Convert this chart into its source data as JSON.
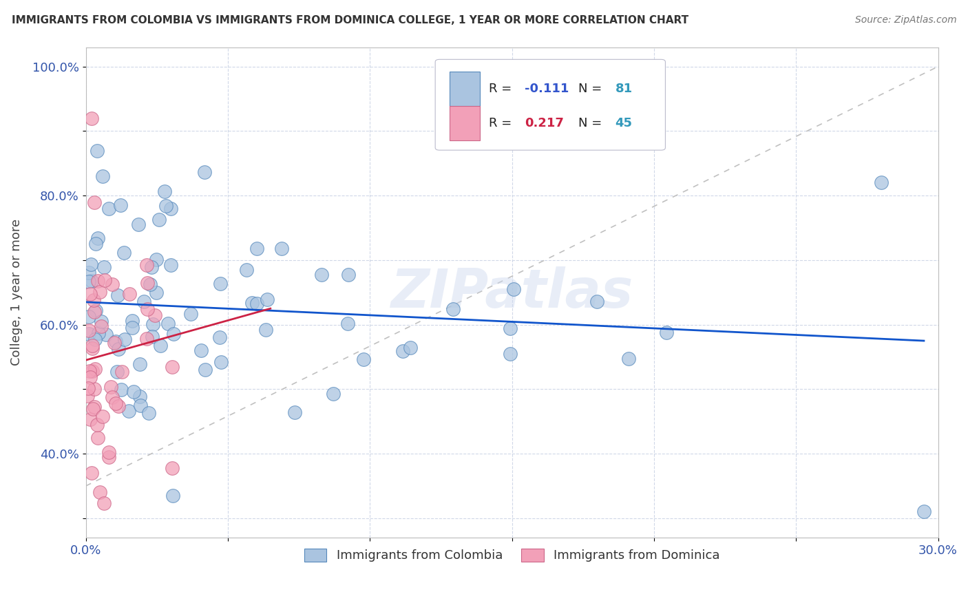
{
  "title": "IMMIGRANTS FROM COLOMBIA VS IMMIGRANTS FROM DOMINICA COLLEGE, 1 YEAR OR MORE CORRELATION CHART",
  "source": "Source: ZipAtlas.com",
  "ylabel": "College, 1 year or more",
  "xlim": [
    0.0,
    0.3
  ],
  "ylim": [
    0.27,
    1.03
  ],
  "xtick_positions": [
    0.0,
    0.05,
    0.1,
    0.15,
    0.2,
    0.25,
    0.3
  ],
  "xtick_labels": [
    "0.0%",
    "",
    "",
    "",
    "",
    "",
    "30.0%"
  ],
  "ytick_positions": [
    0.3,
    0.4,
    0.5,
    0.6,
    0.7,
    0.8,
    0.9,
    1.0
  ],
  "ytick_labels": [
    "",
    "40.0%",
    "",
    "60.0%",
    "",
    "80.0%",
    "",
    "100.0%"
  ],
  "colombia_color": "#aac4e0",
  "dominica_color": "#f2a0b8",
  "colombia_edge": "#5588bb",
  "dominica_edge": "#cc6688",
  "trend_colombia_color": "#1155cc",
  "trend_dominica_color": "#cc2244",
  "ref_line_color": "#c0c0c0",
  "colombia_R": -0.111,
  "colombia_N": 81,
  "dominica_R": 0.217,
  "dominica_N": 45,
  "watermark": "ZIPatlas",
  "background_color": "#ffffff",
  "grid_color": "#d0d8e8"
}
